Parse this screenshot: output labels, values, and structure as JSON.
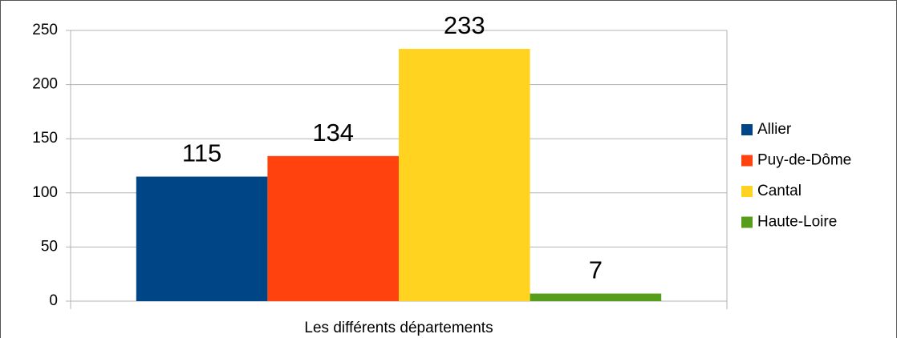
{
  "chart_data": {
    "type": "bar",
    "categories": [
      "Les différents départements"
    ],
    "series": [
      {
        "name": "Allier",
        "color": "#004586",
        "values": [
          115
        ]
      },
      {
        "name": "Puy-de-Dôme",
        "color": "#ff420e",
        "values": [
          134
        ]
      },
      {
        "name": "Cantal",
        "color": "#ffd320",
        "values": [
          233
        ]
      },
      {
        "name": "Haute-Loire",
        "color": "#579d1c",
        "values": [
          7
        ]
      }
    ],
    "ylim": [
      0,
      250
    ],
    "yticks": [
      0,
      50,
      100,
      150,
      200,
      250
    ],
    "grid": true,
    "legend": "right"
  }
}
